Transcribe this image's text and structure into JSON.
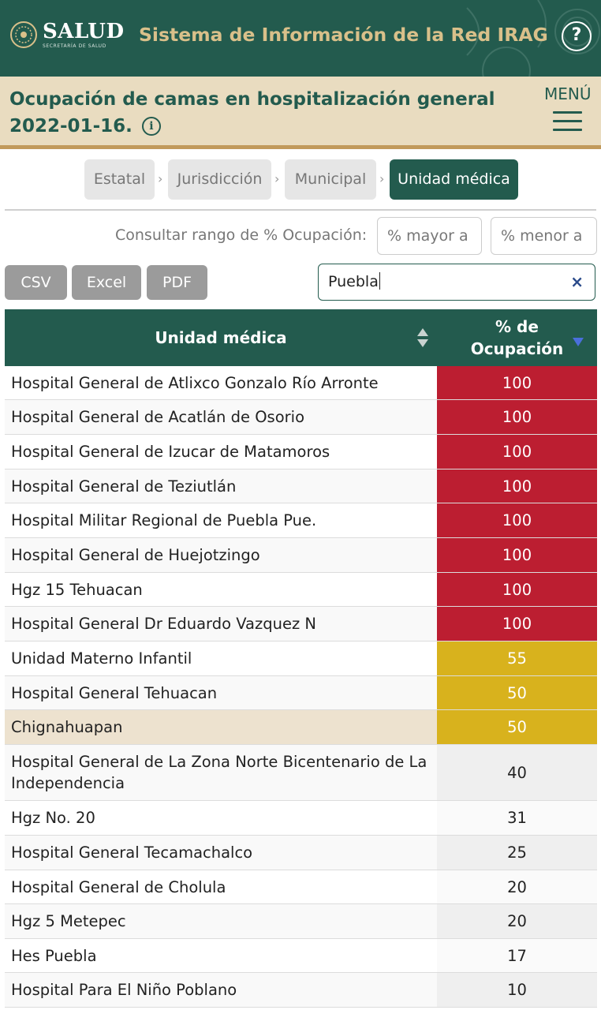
{
  "header": {
    "logo_word": "SALUD",
    "logo_sub": "SECRETARÍA DE SALUD",
    "system_title": "Sistema de Información de la Red IRAG",
    "help_icon": "?"
  },
  "subheader": {
    "title": "Ocupación de camas en hospitalización general",
    "date": "2022-01-16.",
    "info_icon": "i",
    "menu_label": "MENÚ"
  },
  "breadcrumbs": {
    "items": [
      {
        "label": "Estatal"
      },
      {
        "label": "Jurisdicción"
      },
      {
        "label": "Municipal"
      },
      {
        "label": "Unidad médica"
      }
    ],
    "separator": "›",
    "active_index": 3
  },
  "range": {
    "label": "Consultar rango de % Ocupación:",
    "min_placeholder": "% mayor a",
    "max_placeholder": "% menor a"
  },
  "export": {
    "csv": "CSV",
    "excel": "Excel",
    "pdf": "PDF"
  },
  "search": {
    "value": "Puebla",
    "clear_icon": "×"
  },
  "table": {
    "col_unit": "Unidad médica",
    "col_pct_line1": "% de",
    "col_pct_line2": "Ocupación",
    "rows": [
      {
        "name": "Hospital General de Atlixco Gonzalo Río Arronte",
        "pct": "100",
        "level": "red"
      },
      {
        "name": "Hospital General de Acatlán de Osorio",
        "pct": "100",
        "level": "red"
      },
      {
        "name": "Hospital General de Izucar de Matamoros",
        "pct": "100",
        "level": "red"
      },
      {
        "name": "Hospital General de Teziutlán",
        "pct": "100",
        "level": "red"
      },
      {
        "name": "Hospital Militar Regional de Puebla Pue.",
        "pct": "100",
        "level": "red"
      },
      {
        "name": "Hospital General de Huejotzingo",
        "pct": "100",
        "level": "red"
      },
      {
        "name": "Hgz 15 Tehuacan",
        "pct": "100",
        "level": "red"
      },
      {
        "name": "Hospital General Dr Eduardo Vazquez N",
        "pct": "100",
        "level": "red"
      },
      {
        "name": "Unidad Materno Infantil",
        "pct": "55",
        "level": "yellow"
      },
      {
        "name": "Hospital General Tehuacan",
        "pct": "50",
        "level": "yellow"
      },
      {
        "name": "Chignahuapan",
        "pct": "50",
        "level": "yellow"
      },
      {
        "name": "Hospital General de La Zona Norte Bicentenario de La Independencia",
        "pct": "40",
        "level": "plain"
      },
      {
        "name": "Hgz No. 20",
        "pct": "31",
        "level": "plain"
      },
      {
        "name": "Hospital General Tecamachalco",
        "pct": "25",
        "level": "plain"
      },
      {
        "name": "Hospital General de Cholula",
        "pct": "20",
        "level": "plain"
      },
      {
        "name": "Hgz 5 Metepec",
        "pct": "20",
        "level": "plain"
      },
      {
        "name": "Hes Puebla",
        "pct": "17",
        "level": "plain"
      },
      {
        "name": "Hospital Para El Niño Poblano",
        "pct": "10",
        "level": "plain"
      }
    ]
  },
  "colors": {
    "brand_green": "#235b4e",
    "gold": "#d9c08a",
    "sand": "#e9dcc0",
    "red": "#bc1e31",
    "yellow": "#d8b21d"
  }
}
